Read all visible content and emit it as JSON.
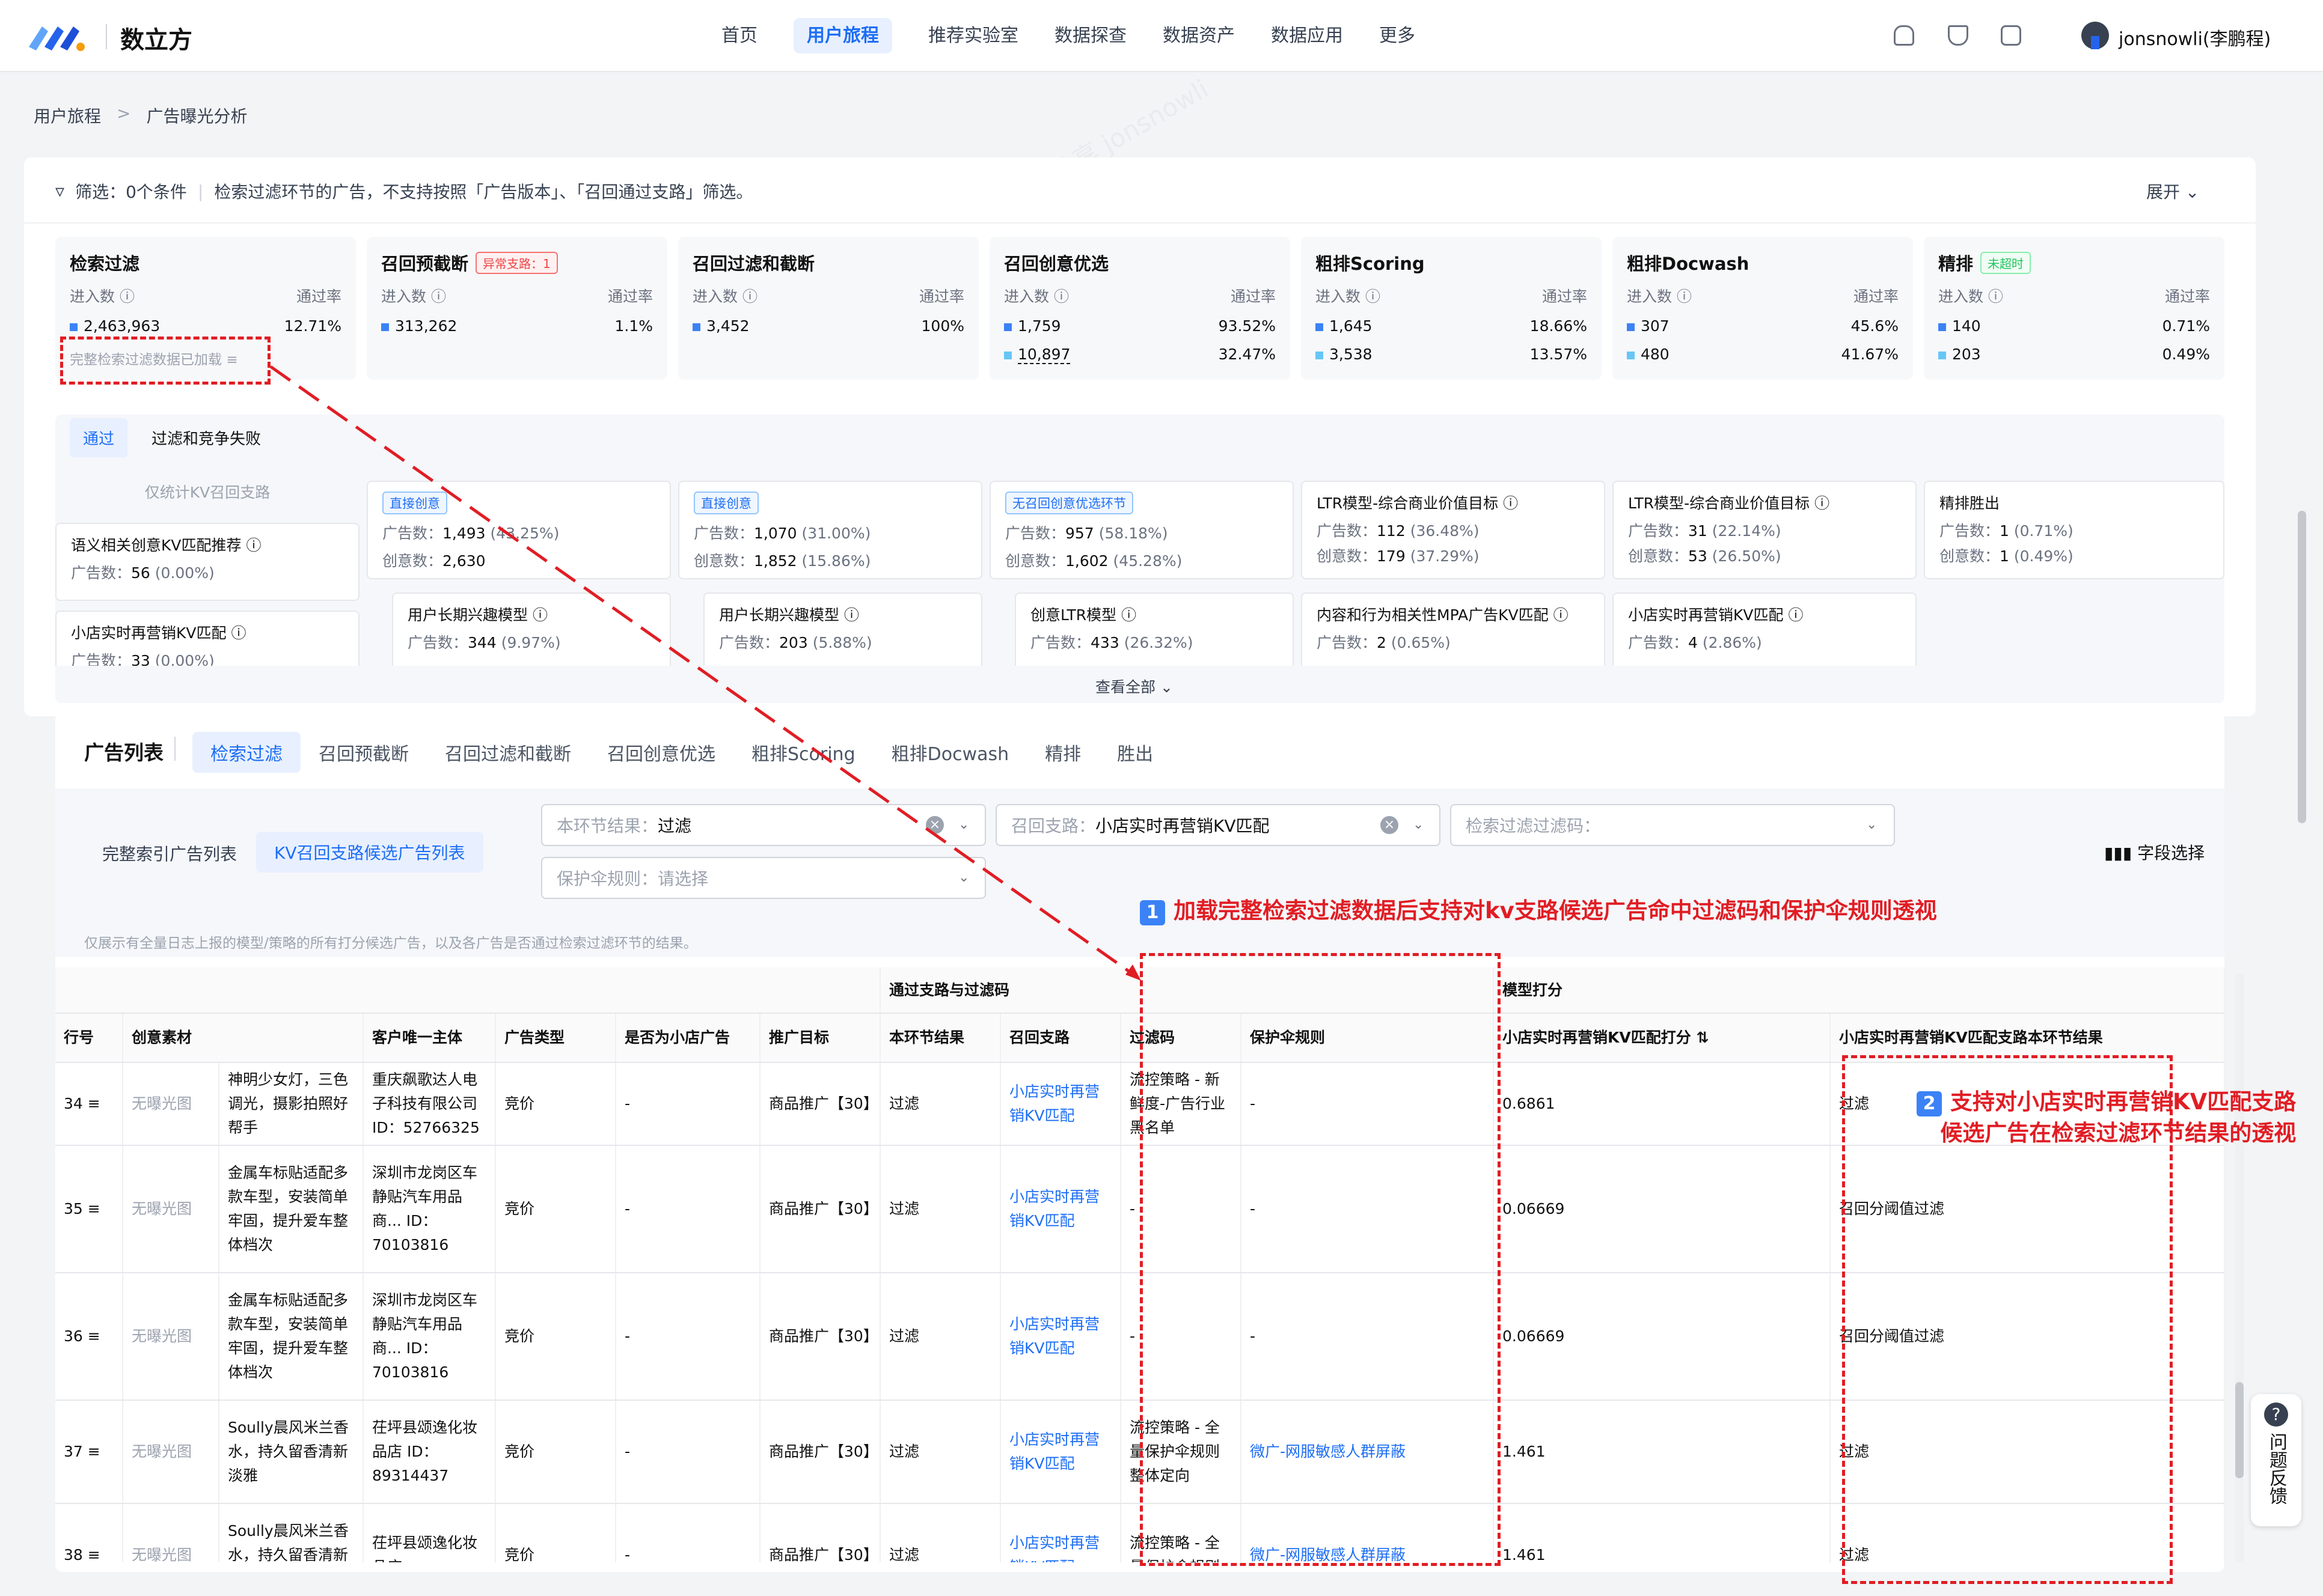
{
  "brand": "数立方",
  "nav": [
    "首页",
    "用户旅程",
    "推荐实验室",
    "数据探查",
    "数据资产",
    "数据应用",
    "更多"
  ],
  "user": "jonsnowli(李鹏程)",
  "breadcrumb": [
    "用户旅程",
    "广告曝光分析"
  ],
  "filter": {
    "text": "筛选：0个条件",
    "note": "检索过滤环节的广告，不支持按照「广告版本」、「召回通过支路」筛选。",
    "expand": "展开"
  },
  "stages": [
    {
      "title": "检索过滤",
      "badge": "",
      "in_label": "进入数",
      "rate_label": "通过率",
      "v1": "2,463,963",
      "r1": "12.71%",
      "v2": "",
      "r2": "",
      "note": "完整检索过滤数据已加载"
    },
    {
      "title": "召回预截断",
      "badge": "异常支路：1",
      "in_label": "进入数",
      "rate_label": "通过率",
      "v1": "313,262",
      "r1": "1.1%",
      "v2": "",
      "r2": ""
    },
    {
      "title": "召回过滤和截断",
      "badge": "",
      "in_label": "进入数",
      "rate_label": "通过率",
      "v1": "3,452",
      "r1": "100%",
      "v2": "",
      "r2": ""
    },
    {
      "title": "召回创意优选",
      "badge": "",
      "in_label": "进入数",
      "rate_label": "通过率",
      "v1": "1,759",
      "r1": "93.52%",
      "v2": "10,897",
      "r2": "32.47%"
    },
    {
      "title": "粗排Scoring",
      "badge": "",
      "in_label": "进入数",
      "rate_label": "通过率",
      "v1": "1,645",
      "r1": "18.66%",
      "v2": "3,538",
      "r2": "13.57%"
    },
    {
      "title": "粗排Docwash",
      "badge": "",
      "in_label": "进入数",
      "rate_label": "通过率",
      "v1": "307",
      "r1": "45.6%",
      "v2": "480",
      "r2": "41.67%"
    },
    {
      "title": "精排",
      "badge": "未超时",
      "in_label": "进入数",
      "rate_label": "通过率",
      "v1": "140",
      "r1": "0.71%",
      "v2": "203",
      "r2": "0.49%"
    }
  ],
  "pass_tabs": [
    "通过",
    "过滤和竞争失败"
  ],
  "kv_only": "仅统计KV召回支路",
  "mini": {
    "m1": {
      "h": "语义相关创意KV匹配推荐",
      "l1": "广告数：",
      "v1": "56",
      "p1": "(0.00%)"
    },
    "m2": {
      "h": "小店实时再营销KV匹配",
      "l1": "广告数：",
      "v1": "33",
      "p1": "(0.00%)"
    },
    "m3": {
      "tag": "直接创意",
      "l1": "广告数：",
      "v1": "1,493",
      "p1": "(43.25%)",
      "l2": "创意数：",
      "v2": "2,630",
      "p2": ""
    },
    "m4": {
      "h": "用户长期兴趣模型",
      "l1": "广告数：",
      "v1": "344",
      "p1": "(9.97%)"
    },
    "m5": {
      "tag": "直接创意",
      "l1": "广告数：",
      "v1": "1,070",
      "p1": "(31.00%)",
      "l2": "创意数：",
      "v2": "1,852",
      "p2": "(15.86%)"
    },
    "m6": {
      "h": "用户长期兴趣模型",
      "l1": "广告数：",
      "v1": "203",
      "p1": "(5.88%)"
    },
    "m7": {
      "tag": "无召回创意优选环节",
      "l1": "广告数：",
      "v1": "957",
      "p1": "(58.18%)",
      "l2": "创意数：",
      "v2": "1,602",
      "p2": "(45.28%)"
    },
    "m8": {
      "h": "创意LTR模型",
      "l1": "广告数：",
      "v1": "433",
      "p1": "(26.32%)"
    },
    "m9": {
      "h": "LTR模型-综合商业价值目标",
      "l1": "广告数：",
      "v1": "112",
      "p1": "(36.48%)",
      "l2": "创意数：",
      "v2": "179",
      "p2": "(37.29%)"
    },
    "m10": {
      "h": "内容和行为相关性MPA广告KV匹配",
      "l1": "广告数：",
      "v1": "2",
      "p1": "(0.65%)"
    },
    "m11": {
      "h": "LTR模型-综合商业价值目标",
      "l1": "广告数：",
      "v1": "31",
      "p1": "(22.14%)",
      "l2": "创意数：",
      "v2": "53",
      "p2": "(26.50%)"
    },
    "m12": {
      "h": "小店实时再营销KV匹配",
      "l1": "广告数：",
      "v1": "4",
      "p1": "(2.86%)"
    },
    "m13": {
      "h": "精排胜出",
      "l1": "广告数：",
      "v1": "1",
      "p1": "(0.71%)",
      "l2": "创意数：",
      "v2": "1",
      "p2": "(0.49%)"
    }
  },
  "view_all": "查看全部",
  "list": {
    "title": "广告列表",
    "tabs": [
      "检索过滤",
      "召回预截断",
      "召回过滤和截断",
      "召回创意优选",
      "粗排Scoring",
      "粗排Docwash",
      "精排",
      "胜出"
    ],
    "subtabs": [
      "完整索引广告列表",
      "KV召回支路候选广告列表"
    ],
    "filters": {
      "f1_label": "本环节结果：",
      "f1_val": "过滤",
      "f2_label": "召回支路：",
      "f2_val": "小店实时再营销KV匹配",
      "f3_label": "检索过滤过滤码：",
      "f4_label": "保护伞规则：",
      "f4_val": "请选择"
    },
    "field_select": "字段选择",
    "hint": "仅展示有全量日志上报的模型/策略的所有打分候选广告，以及各广告是否通过检索过滤环节的结果。"
  },
  "table": {
    "group_headers": {
      "pass": "通过支路与过滤码",
      "score": "模型打分"
    },
    "columns": [
      "行号",
      "创意素材",
      "",
      "客户唯一主体",
      "广告类型",
      "是否为小店广告",
      "推广目标",
      "本环节结果",
      "召回支路",
      "过滤码",
      "保护伞规则",
      "小店实时再营销KV匹配打分",
      "小店实时再营销KV匹配支路本环节结果"
    ],
    "rows": [
      {
        "no": "34",
        "img": "无曝光图",
        "desc": "神明少女灯，三色调光，摄影拍照好帮手",
        "cust": "重庆飙歌达人电子科技有限公司 ID：52766325",
        "type": "竞价",
        "shop": "-",
        "goal": "商品推广【30】",
        "res": "过滤",
        "branch": "小店实时再营销KV匹配",
        "code": "流控策略 - 新鲜度-广告行业黑名单",
        "umb": "-",
        "score": "0.6861",
        "br": "过滤"
      },
      {
        "no": "35",
        "img": "无曝光图",
        "desc": "金属车标贴适配多款车型，安装简单牢固，提升爱车整体档次",
        "cust": "深圳市龙岗区车静贴汽车用品商... ID：70103816",
        "type": "竞价",
        "shop": "-",
        "goal": "商品推广【30】",
        "res": "过滤",
        "branch": "小店实时再营销KV匹配",
        "code": "-",
        "umb": "-",
        "score": "0.06669",
        "br": "召回分阈值过滤"
      },
      {
        "no": "36",
        "img": "无曝光图",
        "desc": "金属车标贴适配多款车型，安装简单牢固，提升爱车整体档次",
        "cust": "深圳市龙岗区车静贴汽车用品商... ID：70103816",
        "type": "竞价",
        "shop": "-",
        "goal": "商品推广【30】",
        "res": "过滤",
        "branch": "小店实时再营销KV匹配",
        "code": "-",
        "umb": "-",
        "score": "0.06669",
        "br": "召回分阈值过滤"
      },
      {
        "no": "37",
        "img": "无曝光图",
        "desc": "Soully晨风米兰香水，持久留香清新淡雅",
        "cust": "茌坪县颂逸化妆品店 ID：89314437",
        "type": "竞价",
        "shop": "-",
        "goal": "商品推广【30】",
        "res": "过滤",
        "branch": "小店实时再营销KV匹配",
        "code": "流控策略 - 全量保护伞规则整体定向",
        "umb": "微广-网服敏感人群屏蔽",
        "score": "1.461",
        "br": "过滤"
      },
      {
        "no": "38",
        "img": "无曝光图",
        "desc": "Soully晨风米兰香水，持久留香清新淡雅",
        "cust": "茌坪县颂逸化妆品店",
        "type": "竞价",
        "shop": "-",
        "goal": "商品推广【30】",
        "res": "过滤",
        "branch": "小店实时再营销KV匹配",
        "code": "流控策略 - 全量保护伞规则",
        "umb": "微广-网服敏感人群屏蔽",
        "score": "1.461",
        "br": "过滤"
      }
    ]
  },
  "annotations": {
    "n1": "1",
    "a1": "加载完整检索过滤数据后支持对kv支路候选广告命中过滤码和保护伞规则透视",
    "n2": "2",
    "a2_line1": "支持对小店实时再营销KV匹配支路",
    "a2_line2": "候选广告在检索过滤环节结果的透视"
  },
  "feedback": "问题反馈",
  "watermark": "平台数据产品截图与对外分享 jonsnowli"
}
